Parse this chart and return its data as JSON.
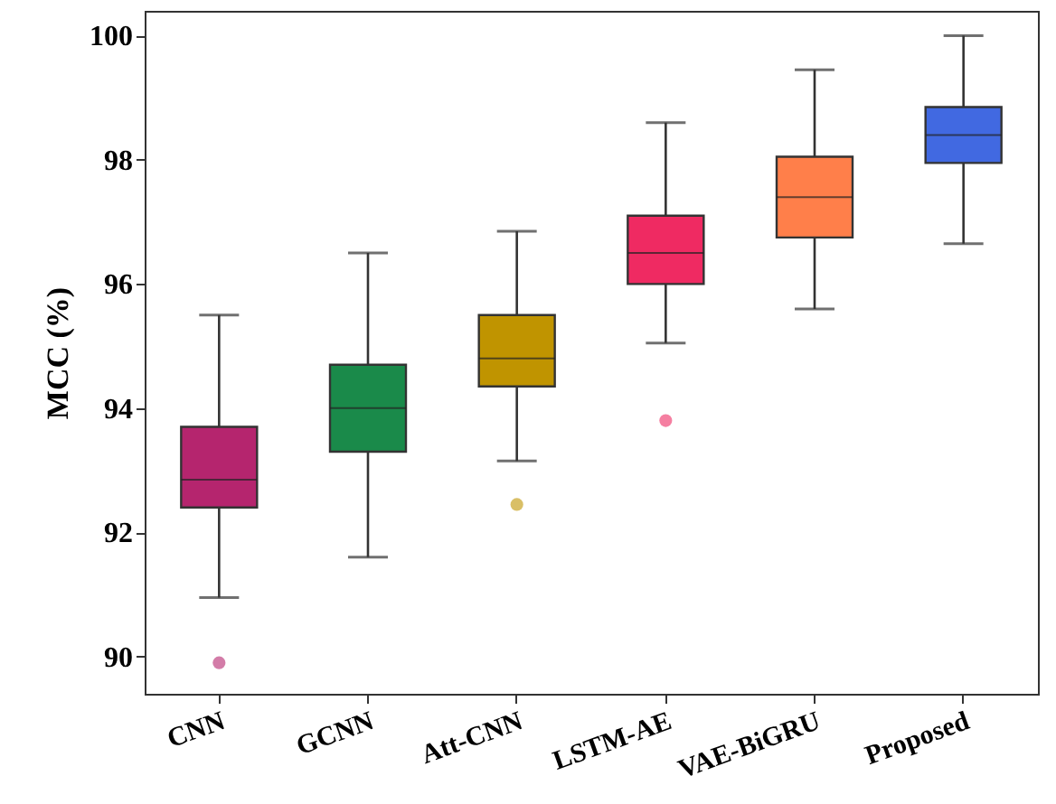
{
  "chart_data": {
    "type": "box",
    "ylabel": "MCC (%)",
    "categories": [
      "CNN",
      "GCNN",
      "Att-CNN",
      "LSTM-AE",
      "VAE-BiGRU",
      "Proposed"
    ],
    "colors": [
      "#b5256e",
      "#1a8a4a",
      "#c09400",
      "#ef2a62",
      "#ff7f4a",
      "#4169e1"
    ],
    "boxes": [
      {
        "low": 90.95,
        "q1": 92.4,
        "median": 92.85,
        "q3": 93.7,
        "high": 95.5,
        "outliers": [
          89.9
        ]
      },
      {
        "low": 91.6,
        "q1": 93.3,
        "median": 94.0,
        "q3": 94.7,
        "high": 96.5
      },
      {
        "low": 93.15,
        "q1": 94.35,
        "median": 94.8,
        "q3": 95.5,
        "high": 96.85,
        "outliers": [
          92.45
        ]
      },
      {
        "low": 95.05,
        "q1": 96.0,
        "median": 96.5,
        "q3": 97.1,
        "high": 98.6,
        "outliers": [
          93.8
        ]
      },
      {
        "low": 95.6,
        "q1": 96.75,
        "median": 97.4,
        "q3": 98.05,
        "high": 99.45
      },
      {
        "low": 96.65,
        "q1": 97.95,
        "median": 98.4,
        "q3": 98.85,
        "high": 100.0
      }
    ],
    "ylim": [
      89.4,
      100.4
    ],
    "yticks": [
      90,
      92,
      94,
      96,
      98,
      100
    ]
  }
}
